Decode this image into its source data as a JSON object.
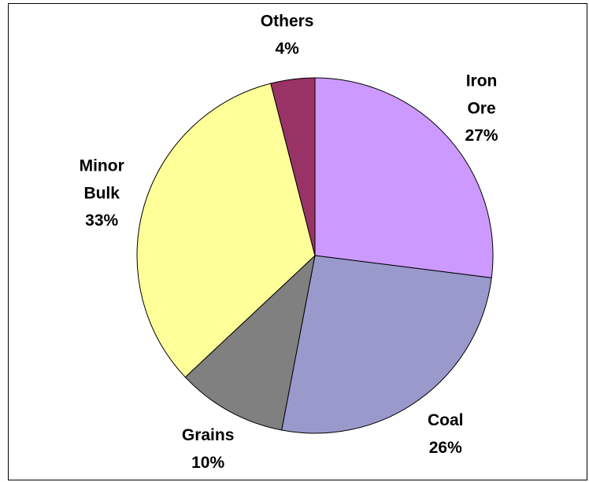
{
  "chart_data": {
    "type": "pie",
    "categories": [
      "Iron Ore",
      "Coal",
      "Grains",
      "Minor Bulk",
      "Others"
    ],
    "values": [
      27,
      26,
      10,
      33,
      4
    ],
    "value_labels": [
      "27%",
      "26%",
      "10%",
      "33%",
      "4%"
    ],
    "colors": [
      "#cc99ff",
      "#9999cc",
      "#808080",
      "#ffff99",
      "#993366"
    ]
  }
}
